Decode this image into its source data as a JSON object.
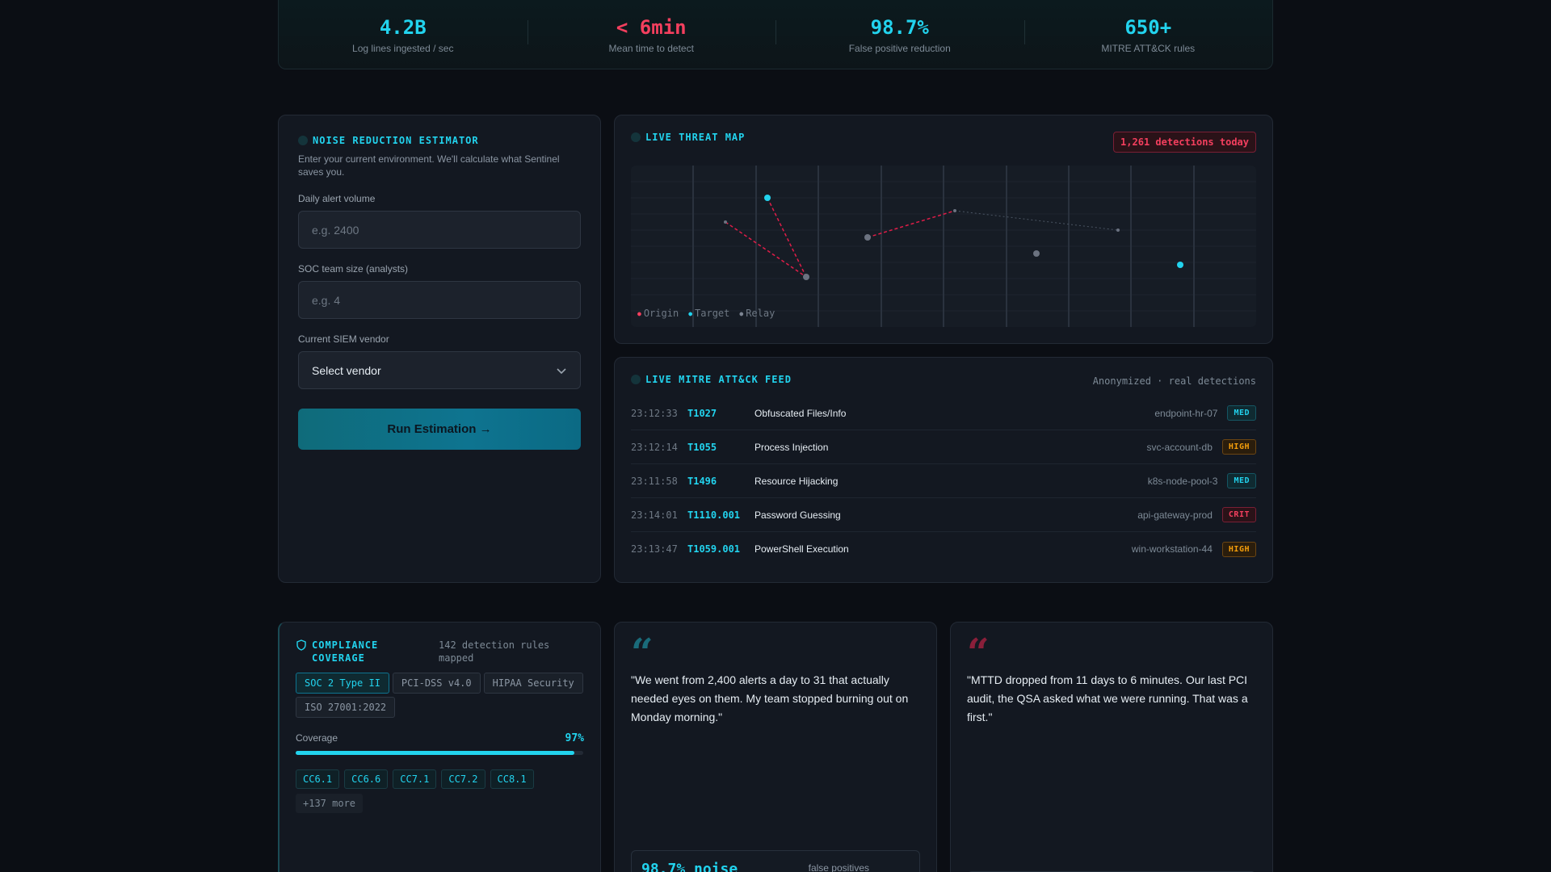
{
  "stats": [
    {
      "value": "4.2B",
      "label": "Log lines ingested / sec",
      "accent": "#22d3ee"
    },
    {
      "value": "< 6min",
      "label": "Mean time to detect",
      "accent": "#f43f5e"
    },
    {
      "value": "98.7%",
      "label": "False positive reduction",
      "accent": "#22d3ee"
    },
    {
      "value": "650+",
      "label": "MITRE ATT&CK rules",
      "accent": "#22d3ee"
    }
  ],
  "estimator": {
    "title": "NOISE REDUCTION ESTIMATOR",
    "description": "Enter your current environment. We'll calculate what Sentinel saves you.",
    "alert_label": "Daily alert volume",
    "alert_placeholder": "e.g. 2400",
    "team_label": "SOC team size (analysts)",
    "team_placeholder": "e.g. 4",
    "vendor_label": "Current SIEM vendor",
    "vendor_value": "Select vendor",
    "run_label": "Run Estimation →"
  },
  "threat_map": {
    "title": "LIVE THREAT MAP",
    "detections_badge": "1,261 detections today",
    "legend": {
      "origin": "Origin",
      "target": "Target",
      "relay": "Relay"
    }
  },
  "feed": {
    "title": "LIVE MITRE ATT&CK FEED",
    "subtitle": "Anonymized · real detections",
    "rows": [
      {
        "time": "23:12:33",
        "id": "T1027",
        "name": "Obfuscated Files/Info",
        "host": "endpoint-hr-07",
        "severity": "MED"
      },
      {
        "time": "23:12:14",
        "id": "T1055",
        "name": "Process Injection",
        "host": "svc-account-db",
        "severity": "HIGH"
      },
      {
        "time": "23:11:58",
        "id": "T1496",
        "name": "Resource Hijacking",
        "host": "k8s-node-pool-3",
        "severity": "MED"
      },
      {
        "time": "23:14:01",
        "id": "T1110.001",
        "name": "Password Guessing",
        "host": "api-gateway-prod",
        "severity": "CRIT"
      },
      {
        "time": "23:13:47",
        "id": "T1059.001",
        "name": "PowerShell Execution",
        "host": "win-workstation-44",
        "severity": "HIGH"
      }
    ]
  },
  "compliance": {
    "title": "COMPLIANCE COVERAGE",
    "mapped": "142 detection rules mapped",
    "frameworks": [
      "SOC 2 Type II",
      "PCI-DSS v4.0",
      "HIPAA Security",
      "ISO 27001:2022"
    ],
    "active_framework": 0,
    "coverage_label": "Coverage",
    "coverage_value": "97%",
    "coverage_fraction": 0.97,
    "controls": [
      "CC6.1",
      "CC6.6",
      "CC7.1",
      "CC7.2",
      "CC8.1"
    ],
    "more": "+137 more"
  },
  "testimonials": [
    {
      "text": "\"We went from 2,400 alerts a day to 31 that actually needed eyes on them. My team stopped burning out on Monday morning.\"",
      "accent": "#1a6b7a",
      "metric": "98.7% noise",
      "metric_sub": "false positives"
    },
    {
      "text": "\"MTTD dropped from 11 days to 6 minutes. Our last PCI audit, the QSA asked what we were running. That was a first.\"",
      "accent": "#8a1f3a"
    }
  ],
  "colors": {
    "accent": "#22d3ee",
    "danger": "#f43f5e",
    "warning": "#f59e0b",
    "background": "#0b0e14"
  }
}
